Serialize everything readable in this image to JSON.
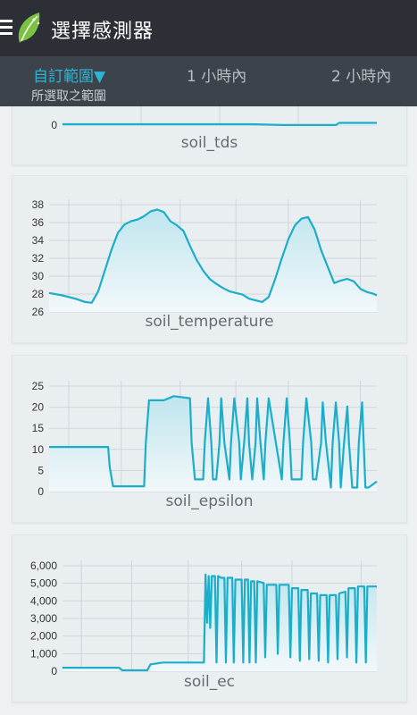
{
  "app_bar": {
    "title": "選擇感測器",
    "menu_icon": "hamburger-menu-icon",
    "logo_icon": "leaf-logo-icon"
  },
  "tabs": [
    {
      "label": "自訂範圍▼",
      "active": true
    },
    {
      "label": "1 小時內",
      "active": false
    },
    {
      "label": "2 小時內",
      "active": false
    }
  ],
  "tab_subtitle": "所選取之範圍",
  "colors": {
    "line": "#1cadc9",
    "fill": "#bfe5ee",
    "grid": "#cfd5d9"
  },
  "chart_data": [
    {
      "type": "area",
      "title": "soil_tds",
      "yticks": [
        "0"
      ],
      "ylim": [
        0,
        40
      ],
      "x": [
        0,
        20,
        40,
        60,
        70,
        80,
        86,
        87,
        88,
        100
      ],
      "y": [
        1.8,
        1.8,
        1.8,
        1.8,
        0.2,
        0.2,
        0.2,
        0.2,
        4.5,
        4.5
      ]
    },
    {
      "type": "area",
      "title": "soil_temperature",
      "yticks": [
        "38",
        "36",
        "34",
        "32",
        "30",
        "28",
        "26"
      ],
      "ylim": [
        26,
        39
      ],
      "x": [
        0,
        4,
        8,
        11,
        13,
        15,
        17,
        19,
        21,
        23,
        25,
        27,
        29,
        31,
        33,
        35,
        37,
        39,
        41,
        43,
        45,
        47,
        49,
        51,
        53,
        55,
        57,
        59,
        61,
        63,
        65,
        67,
        69,
        71,
        73,
        75,
        77,
        79,
        81,
        83,
        85,
        87,
        89,
        91,
        93,
        95,
        97,
        99,
        100
      ],
      "y": [
        28.3,
        28.0,
        27.6,
        27.2,
        27.1,
        28.5,
        31.0,
        33.5,
        35.6,
        36.6,
        37.0,
        37.2,
        37.6,
        38.2,
        38.4,
        38.1,
        37.0,
        36.5,
        35.8,
        34.0,
        32.3,
        31.0,
        30.0,
        29.4,
        28.9,
        28.5,
        28.3,
        28.1,
        27.6,
        27.4,
        27.2,
        27.8,
        30.0,
        32.5,
        34.8,
        36.5,
        37.3,
        37.5,
        36.0,
        33.5,
        31.5,
        29.5,
        29.8,
        30.0,
        29.7,
        28.8,
        28.4,
        28.2,
        28.0
      ]
    },
    {
      "type": "area",
      "title": "soil_epsilon",
      "yticks": [
        "25",
        "20",
        "15",
        "10",
        "5",
        "0"
      ],
      "ylim": [
        0,
        26
      ],
      "x": [
        0,
        8,
        18,
        18.5,
        19.5,
        29,
        29.5,
        30.5,
        35,
        38,
        43,
        43.5,
        44.5,
        47,
        47.5,
        48.5,
        49.5,
        50,
        51,
        52,
        52.5,
        53.5,
        55,
        55.5,
        56.5,
        58,
        58.5,
        59.5,
        60.5,
        61,
        62,
        63,
        63.5,
        64.5,
        65.5,
        66,
        67,
        71,
        71.5,
        72.5,
        73.5,
        74,
        75,
        77,
        77.5,
        78.5,
        80,
        80.5,
        81.5,
        83,
        83.5,
        84.5,
        86,
        86.5,
        87.5,
        88.5,
        89,
        90,
        91,
        91.5,
        92.5,
        94,
        94.5,
        95.5,
        96,
        96.5,
        97.5,
        100
      ],
      "y": [
        11,
        11,
        11,
        6,
        1.3,
        1.3,
        12,
        22.5,
        22.5,
        23.5,
        23,
        12,
        3,
        3,
        12,
        23,
        12,
        3,
        3,
        12,
        23,
        12,
        3,
        12,
        23,
        12,
        3,
        12,
        23,
        12,
        3,
        12,
        23,
        12,
        3,
        12,
        23,
        3,
        12,
        23,
        12,
        3,
        3,
        3,
        12,
        23,
        12,
        3,
        3,
        12,
        22,
        12,
        1,
        12,
        22,
        12,
        1,
        12,
        21,
        12,
        1,
        1,
        12,
        22,
        12,
        1,
        1,
        2.5
      ]
    },
    {
      "type": "area",
      "title": "soil_ec",
      "yticks": [
        "6,000",
        "5,000",
        "4,000",
        "3,000",
        "2,000",
        "1,000",
        "0"
      ],
      "ylim": [
        0,
        6100
      ],
      "x": [
        0,
        10,
        18,
        19,
        25,
        27,
        28,
        32,
        45,
        45.5,
        46,
        46.5,
        47,
        47.5,
        48.5,
        49,
        49.5,
        50.5,
        51.5,
        52,
        52.5,
        54,
        54.5,
        55,
        57,
        57.5,
        58,
        59,
        59.5,
        60,
        61,
        61.5,
        62,
        64,
        64.5,
        65,
        68,
        68.5,
        69,
        72,
        72.5,
        73,
        75,
        75.5,
        76,
        78,
        78.5,
        79,
        81,
        81.5,
        82,
        84,
        84.5,
        85,
        87,
        87.5,
        88,
        90,
        90.5,
        91,
        93,
        93.5,
        94,
        96,
        96.5,
        97,
        100
      ],
      "y": [
        200,
        200,
        200,
        50,
        50,
        50,
        400,
        500,
        500,
        5600,
        2800,
        5500,
        2500,
        5500,
        5500,
        500,
        5500,
        5400,
        5400,
        500,
        5400,
        5400,
        500,
        5300,
        5300,
        500,
        5300,
        5300,
        500,
        5200,
        5200,
        500,
        5200,
        5100,
        800,
        5000,
        5000,
        1000,
        5000,
        5000,
        800,
        4800,
        4800,
        600,
        4700,
        4700,
        700,
        4500,
        4500,
        600,
        4400,
        4400,
        500,
        4400,
        4400,
        700,
        4500,
        4600,
        800,
        4800,
        4800,
        500,
        4900,
        4900,
        500,
        4900,
        4900
      ]
    }
  ]
}
